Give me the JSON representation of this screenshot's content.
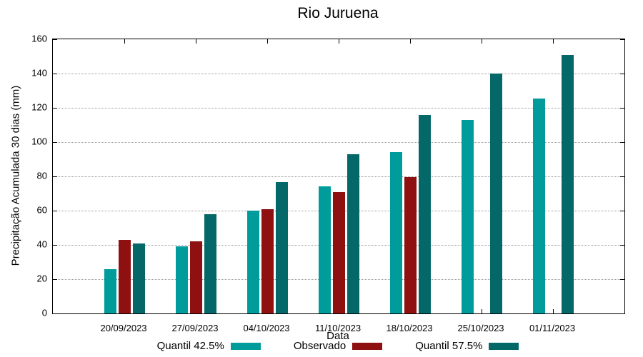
{
  "chart_data": {
    "type": "bar",
    "title": "Rio Juruena",
    "xlabel": "Data",
    "ylabel": "Precipitação Acumulada 30 dias (mm)",
    "categories": [
      "20/09/2023",
      "27/09/2023",
      "04/10/2023",
      "11/10/2023",
      "18/10/2023",
      "25/10/2023",
      "01/11/2023"
    ],
    "series": [
      {
        "name": "Quantil 42.5%",
        "color": "#009c9c",
        "values": [
          26,
          39,
          60,
          74,
          94,
          113,
          125.5
        ]
      },
      {
        "name": "Observado",
        "color": "#8e1010",
        "values": [
          43,
          42,
          61,
          71,
          79.5,
          null,
          null
        ]
      },
      {
        "name": "Quantil 57.5%",
        "color": "#056868",
        "values": [
          41,
          58,
          76.5,
          93,
          116,
          140,
          151
        ]
      }
    ],
    "ylim": [
      0,
      160
    ],
    "yticks": [
      0,
      20,
      40,
      60,
      80,
      100,
      120,
      140,
      160
    ],
    "grid": "horizontal-dotted",
    "legend_position": "bottom",
    "axis_color": "#000000",
    "grid_color": "#9a9a9a"
  }
}
